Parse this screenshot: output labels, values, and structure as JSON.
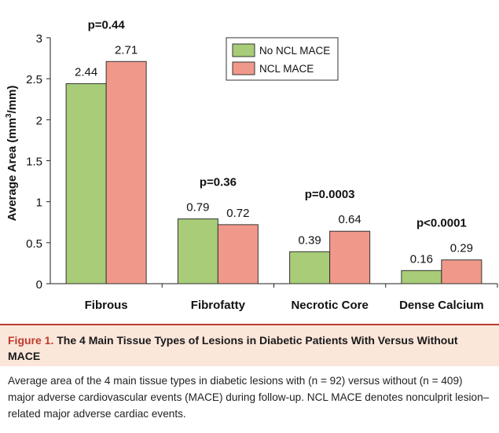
{
  "chart_data": {
    "type": "bar",
    "ylabel": "Average Area (mm3/mm)",
    "ylabel_main": "Average Area (mm",
    "ylabel_sup": "3",
    "ylabel_end": "/mm)",
    "ylim": [
      0,
      3
    ],
    "yticks": [
      "0",
      "0.5",
      "1",
      "1.5",
      "2",
      "2.5",
      "3"
    ],
    "categories": [
      "Fibrous",
      "Fibrofatty",
      "Necrotic Core",
      "Dense Calcium"
    ],
    "series": [
      {
        "name": "No NCL MACE",
        "color": "#a8cc78",
        "values": [
          2.44,
          0.79,
          0.39,
          0.16
        ],
        "labels": [
          "2.44",
          "0.79",
          "0.39",
          "0.16"
        ]
      },
      {
        "name": "NCL MACE",
        "color": "#f0998a",
        "values": [
          2.71,
          0.72,
          0.64,
          0.29
        ],
        "labels": [
          "2.71",
          "0.72",
          "0.64",
          "0.29"
        ]
      }
    ],
    "p_values": [
      "p=0.44",
      "p=0.36",
      "p=0.0003",
      "p<0.0001"
    ],
    "legend_position": "top-right"
  },
  "caption": {
    "figure_number": "Figure 1.",
    "title": "The 4 Main Tissue Types of Lesions in Diabetic Patients With Versus Without MACE",
    "body": "Average area of the 4 main tissue types in diabetic lesions with (n = 92) versus without (n = 409) major adverse cardiovascular events (MACE) during follow-up. NCL MACE denotes nonculprit lesion–related major adverse cardiac events."
  }
}
